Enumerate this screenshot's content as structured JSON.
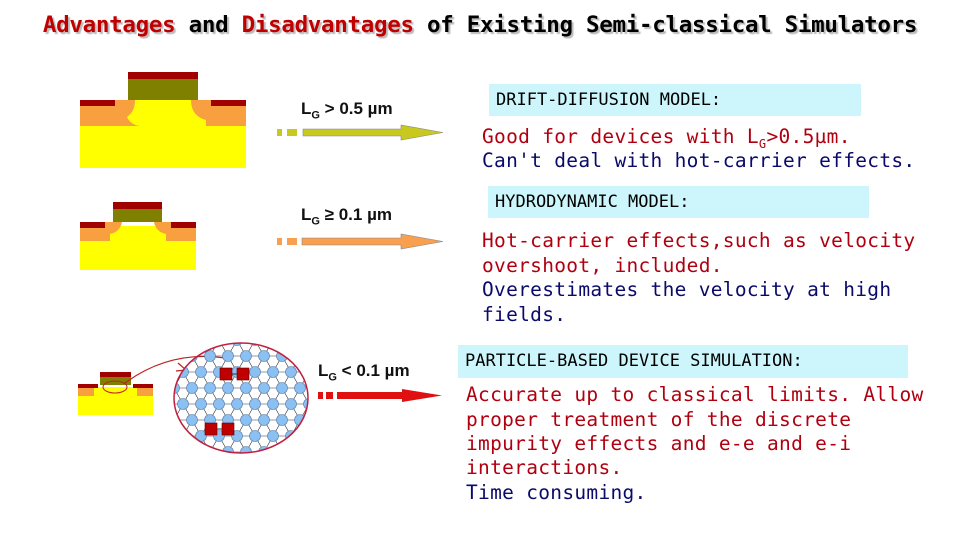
{
  "title": {
    "parts": [
      "Advantages",
      "and",
      "Disadvantages",
      "of Existing Semi-classical Simulators"
    ]
  },
  "diagram": {
    "labels": [
      {
        "l": "L",
        "sub": "G",
        "rest": " > 0.5 µm"
      },
      {
        "l": "L",
        "sub": "G",
        "rest": " ≥ 0.1 µm"
      },
      {
        "l": "L",
        "sub": "G",
        "rest": " < 0.1 µm"
      }
    ]
  },
  "models": [
    {
      "heading": "DRIFT-DIFFUSION MODEL:",
      "pros": [
        "Good for devices with L",
        "G",
        ">0.5µm."
      ],
      "cons": [
        "Can't deal with hot-carrier effects."
      ]
    },
    {
      "heading": "HYDRODYNAMIC MODEL:",
      "pros": [
        "Hot-carrier effects,such as velocity",
        "overshoot, included."
      ],
      "cons": [
        "Overestimates the velocity at high",
        "fields."
      ]
    },
    {
      "heading": "PARTICLE-BASED DEVICE SIMULATION:",
      "pros": [
        "Accurate up to classical limits. Allow",
        "proper treatment of the discrete",
        "impurity effects and e-e and e-i",
        "interactions."
      ],
      "cons": [
        "Time consuming."
      ]
    }
  ],
  "colors": {
    "title_red": "#c00000",
    "pro_red": "#b00010",
    "con_blue": "#0a0a6a",
    "box_bg": "#ccf6fb",
    "arrow1": "#c8c81e",
    "arrow2": "#f8a050",
    "arrow3": "#e01010"
  }
}
